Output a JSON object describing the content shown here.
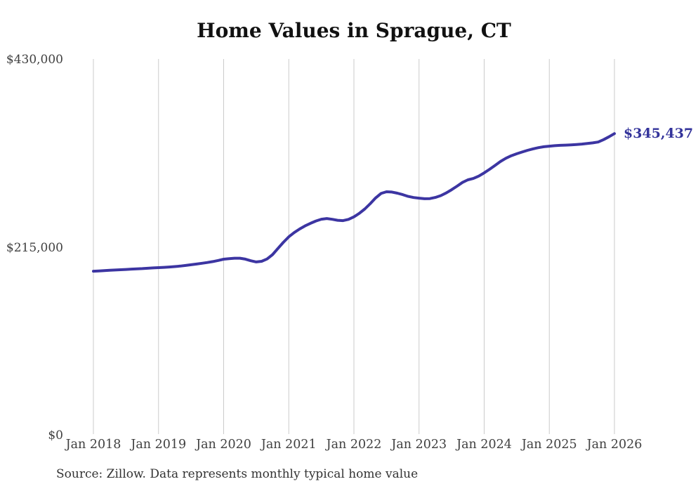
{
  "chart_data": {
    "type": "line",
    "title": "Home Values in Sprague, CT",
    "source": "Source: Zillow. Data represents monthly typical home value",
    "xlabel": "",
    "ylabel": "",
    "ylim": [
      0,
      430000
    ],
    "grid": "vertical-only",
    "legend": "none",
    "x_ticks": [
      "Jan 2018",
      "Jan 2019",
      "Jan 2020",
      "Jan 2021",
      "Jan 2022",
      "Jan 2023",
      "Jan 2024",
      "Jan 2025",
      "Jan 2026"
    ],
    "y_ticks": [
      {
        "label": "$430,000",
        "value": 430000
      },
      {
        "label": "$215,000",
        "value": 215000
      },
      {
        "label": "$0",
        "value": 0
      }
    ],
    "annotation": {
      "text": "$345,437",
      "value": 345437,
      "position": "line-end"
    },
    "colors": {
      "line": "#3c35a2",
      "annotation": "#33339b",
      "grid": "#cbcbcb",
      "title": "#111111",
      "axis_text": "#404040"
    },
    "series": [
      {
        "name": "Monthly typical home value",
        "start": "Jan 2018",
        "interval": "monthly",
        "values": [
          188000,
          188300,
          188700,
          189000,
          189400,
          189700,
          190000,
          190400,
          190700,
          191000,
          191400,
          191800,
          192100,
          192400,
          192800,
          193300,
          193900,
          194600,
          195400,
          196200,
          197100,
          198000,
          199000,
          200300,
          201700,
          202400,
          202900,
          202900,
          201800,
          200000,
          198600,
          199300,
          202000,
          207000,
          214000,
          221000,
          227400,
          232200,
          236300,
          239800,
          242800,
          245500,
          247500,
          248300,
          247400,
          246300,
          245900,
          247300,
          250200,
          254200,
          259200,
          265200,
          271800,
          277000,
          278900,
          278600,
          277300,
          275600,
          273600,
          272300,
          271600,
          270900,
          271100,
          272400,
          274500,
          277500,
          281200,
          285300,
          289600,
          292600,
          294100,
          296800,
          300500,
          304600,
          309000,
          313500,
          317200,
          320100,
          322400,
          324400,
          326300,
          328000,
          329400,
          330400,
          331100,
          331600,
          332000,
          332300,
          332600,
          333000,
          333500,
          334100,
          334800,
          335800,
          338500,
          341800,
          345437
        ]
      }
    ]
  }
}
